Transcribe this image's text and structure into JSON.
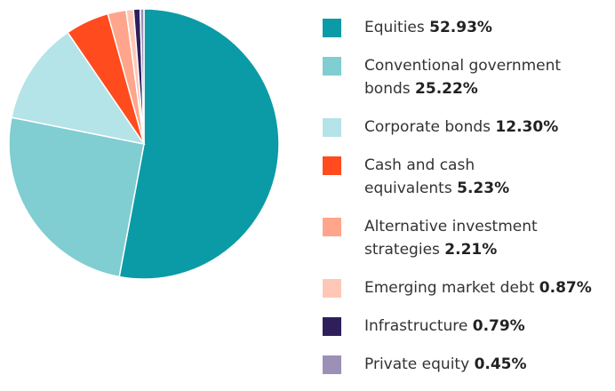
{
  "chart_data": {
    "type": "pie",
    "categories": [
      "Equities",
      "Conventional government bonds",
      "Corporate bonds",
      "Cash and cash equivalents",
      "Alternative investment strategies",
      "Emerging market debt",
      "Infrastructure",
      "Private equity"
    ],
    "values": [
      52.93,
      25.22,
      12.3,
      5.23,
      2.21,
      0.87,
      0.79,
      0.45
    ],
    "value_labels": [
      "52.93%",
      "25.22%",
      "12.30%",
      "5.23%",
      "2.21%",
      "0.87%",
      "0.79%",
      "0.45%"
    ],
    "colors": [
      "#0a9ba6",
      "#80cdd2",
      "#b4e3e8",
      "#ff4b1e",
      "#ffa58c",
      "#ffc7b8",
      "#2e1f5c",
      "#9c90b6"
    ]
  }
}
